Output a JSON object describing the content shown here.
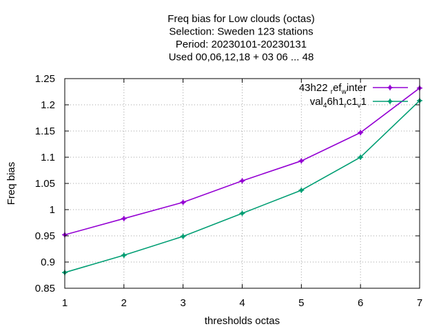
{
  "chart_data": {
    "type": "line",
    "title_lines": [
      "Freq bias  for Low clouds (octas)",
      "Selection: Sweden    123 stations",
      "Period: 20230101-20230131",
      "Used  00,06,12,18  + 03 06 ... 48"
    ],
    "xlabel": "thresholds octas",
    "ylabel": "Freq bias",
    "xlim": [
      1,
      7
    ],
    "ylim": [
      0.85,
      1.25
    ],
    "xticks": [
      "1",
      "2",
      "3",
      "4",
      "5",
      "6",
      "7"
    ],
    "yticks": [
      "0.85",
      "0.9",
      "0.95",
      "1",
      "1.05",
      "1.1",
      "1.15",
      "1.2",
      "1.25"
    ],
    "grid": true,
    "legend_position": "top-right",
    "x": [
      1,
      2,
      3,
      4,
      5,
      6,
      7
    ],
    "series": [
      {
        "name": "43h22_ref_winter",
        "legend_parts": [
          [
            "43h22 ",
            "n"
          ],
          [
            "r",
            "sub"
          ],
          [
            "ef",
            "n"
          ],
          [
            "w",
            "sub"
          ],
          [
            "inter",
            "n"
          ]
        ],
        "color": "#9400d3",
        "values": [
          0.952,
          0.983,
          1.014,
          1.055,
          1.093,
          1.147,
          1.232
        ]
      },
      {
        "name": "val_46h1_rc1_v1",
        "legend_parts": [
          [
            "val",
            "n"
          ],
          [
            "4",
            "sub"
          ],
          [
            "6h1",
            "n"
          ],
          [
            "r",
            "sub"
          ],
          [
            "c1",
            "n"
          ],
          [
            "v",
            "sub"
          ],
          [
            "1",
            "n"
          ]
        ],
        "color": "#009e73",
        "values": [
          0.88,
          0.913,
          0.949,
          0.993,
          1.037,
          1.1,
          1.208
        ]
      }
    ]
  }
}
